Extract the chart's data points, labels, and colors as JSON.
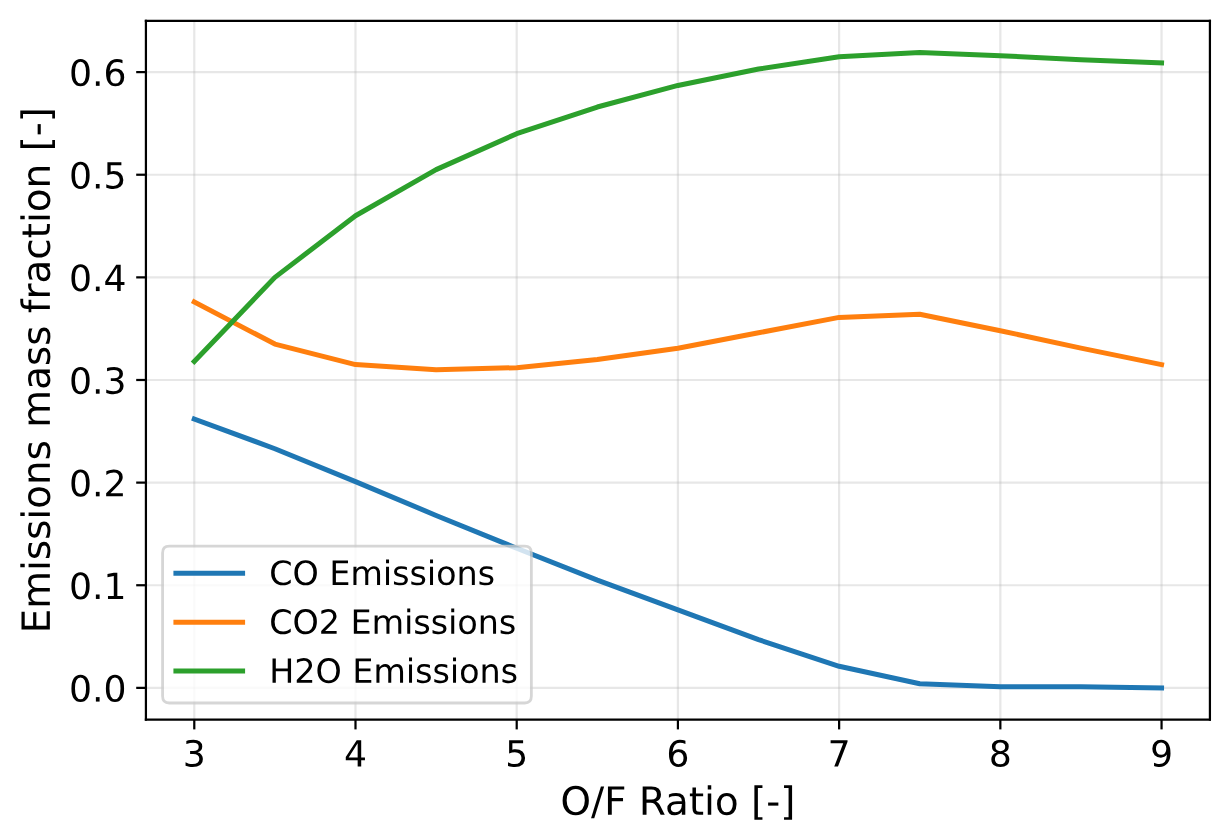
{
  "chart_data": {
    "type": "line",
    "xlabel": "O/F Ratio [-]",
    "ylabel": "Emissions mass fraction [-]",
    "x": [
      3,
      3.5,
      4,
      4.5,
      5,
      5.5,
      6,
      6.5,
      7,
      7.5,
      8,
      8.5,
      9
    ],
    "series": [
      {
        "name": "CO Emissions",
        "color": "#1f77b4",
        "values": [
          0.262,
          0.233,
          0.201,
          0.168,
          0.136,
          0.105,
          0.076,
          0.047,
          0.021,
          0.004,
          0.001,
          0.001,
          0.0
        ]
      },
      {
        "name": "CO2 Emissions",
        "color": "#ff7f0e",
        "values": [
          0.376,
          0.335,
          0.315,
          0.31,
          0.312,
          0.32,
          0.331,
          0.346,
          0.361,
          0.364,
          0.348,
          0.331,
          0.315
        ]
      },
      {
        "name": "H2O Emissions",
        "color": "#2ca02c",
        "values": [
          0.318,
          0.4,
          0.46,
          0.505,
          0.54,
          0.566,
          0.587,
          0.603,
          0.615,
          0.619,
          0.616,
          0.612,
          0.609
        ]
      }
    ],
    "xlim": [
      2.7,
      9.3
    ],
    "ylim": [
      -0.031,
      0.65
    ],
    "xticks": [
      3,
      4,
      5,
      6,
      7,
      8,
      9
    ],
    "yticks": [
      {
        "value": 0,
        "label": "0.0"
      },
      {
        "value": 0.1,
        "label": "0.1"
      },
      {
        "value": 0.2,
        "label": "0.2"
      },
      {
        "value": 0.3,
        "label": "0.3"
      },
      {
        "value": 0.4,
        "label": "0.4"
      },
      {
        "value": 0.5,
        "label": "0.5"
      },
      {
        "value": 0.6,
        "label": "0.6"
      }
    ],
    "grid": true,
    "legend": "bottom left",
    "marker": "none",
    "line_style": "solid"
  }
}
